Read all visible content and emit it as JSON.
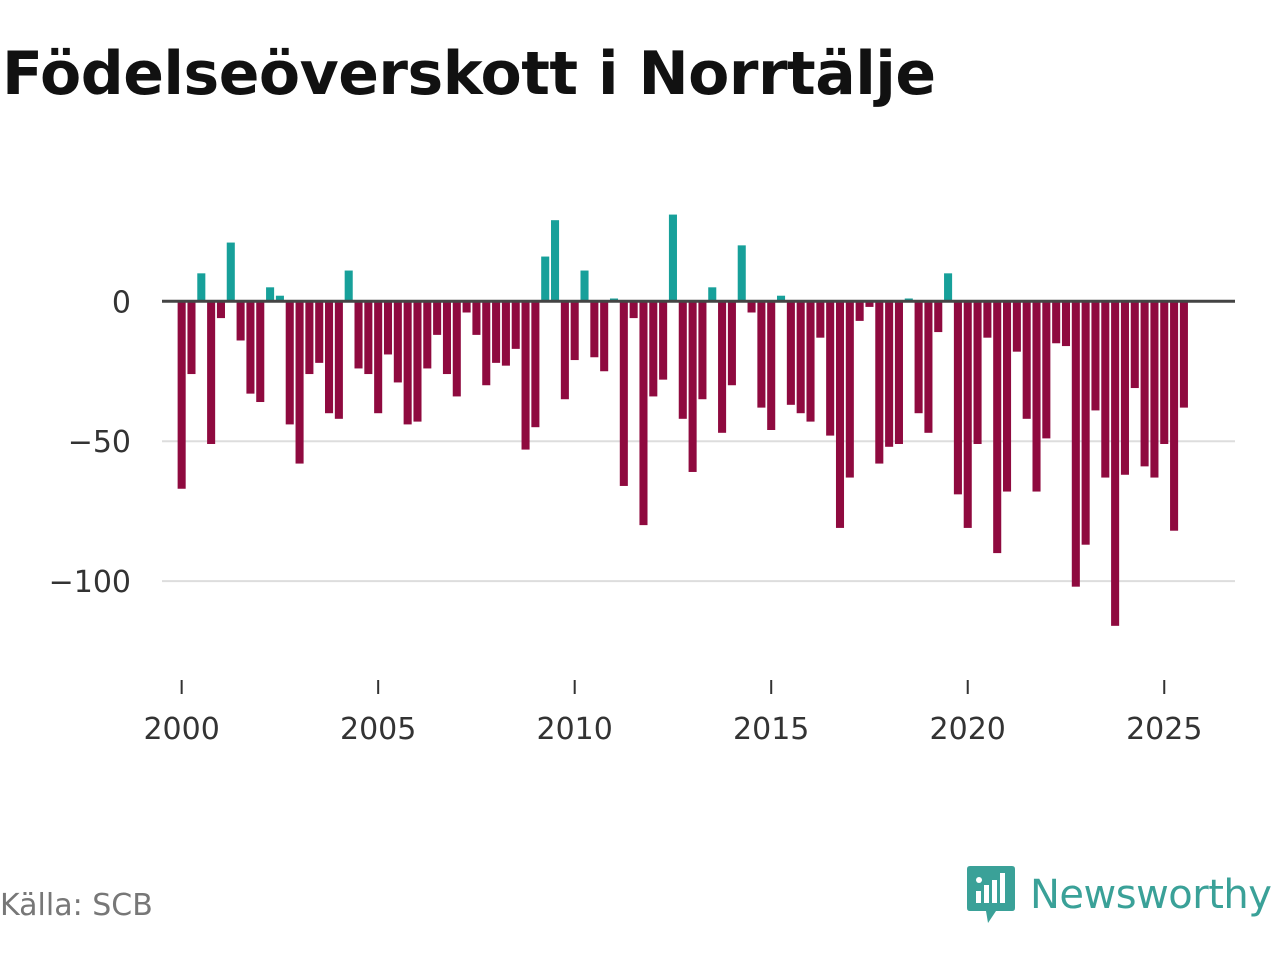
{
  "title": "Födelseöverskott i Norrtälje",
  "source": "Källa: SCB",
  "brand": {
    "name": "Newsworthy",
    "icon": "newsworthy-logo-icon"
  },
  "colors": {
    "positive": "#17a09a",
    "negative": "#8f0a3f",
    "brand": "#3aa198",
    "zero_line": "#444444",
    "grid": "#dddddd",
    "axis_text": "#333333"
  },
  "chart_data": {
    "type": "bar",
    "title": "Födelseöverskott i Norrtälje",
    "xlabel": "",
    "ylabel": "",
    "x_start": 2000.0,
    "x_step": 0.25,
    "xlim": [
      1999.5,
      2026.8
    ],
    "ylim": [
      -130,
      38
    ],
    "xticks": [
      2000,
      2005,
      2010,
      2015,
      2020,
      2025
    ],
    "xtick_labels": [
      "2000",
      "2005",
      "2010",
      "2015",
      "2020",
      "2025"
    ],
    "yticks": [
      0,
      -50,
      -100
    ],
    "ytick_labels": [
      "0",
      "−50",
      "−100"
    ],
    "values": [
      -67,
      -26,
      10,
      -51,
      -6,
      21,
      -14,
      -33,
      -36,
      5,
      2,
      -44,
      -58,
      -26,
      -22,
      -40,
      -42,
      11,
      -24,
      -26,
      -40,
      -19,
      -29,
      -44,
      -43,
      -24,
      -12,
      -26,
      -34,
      -4,
      -12,
      -30,
      -22,
      -23,
      -17,
      -53,
      -45,
      16,
      29,
      -35,
      -21,
      11,
      -20,
      -25,
      1,
      -66,
      -6,
      -80,
      -34,
      -28,
      31,
      -42,
      -61,
      -35,
      5,
      -47,
      -30,
      20,
      -4,
      -38,
      -46,
      2,
      -37,
      -40,
      -43,
      -13,
      -48,
      -81,
      -63,
      -7,
      -2,
      -58,
      -52,
      -51,
      1,
      -40,
      -47,
      -11,
      10,
      -69,
      -81,
      -51,
      -13,
      -90,
      -68,
      -18,
      -42,
      -68,
      -49,
      -15,
      -16,
      -102,
      -87,
      -39,
      -63,
      -116,
      -62,
      -31,
      -59,
      -63,
      -51,
      -82,
      -38
    ]
  }
}
